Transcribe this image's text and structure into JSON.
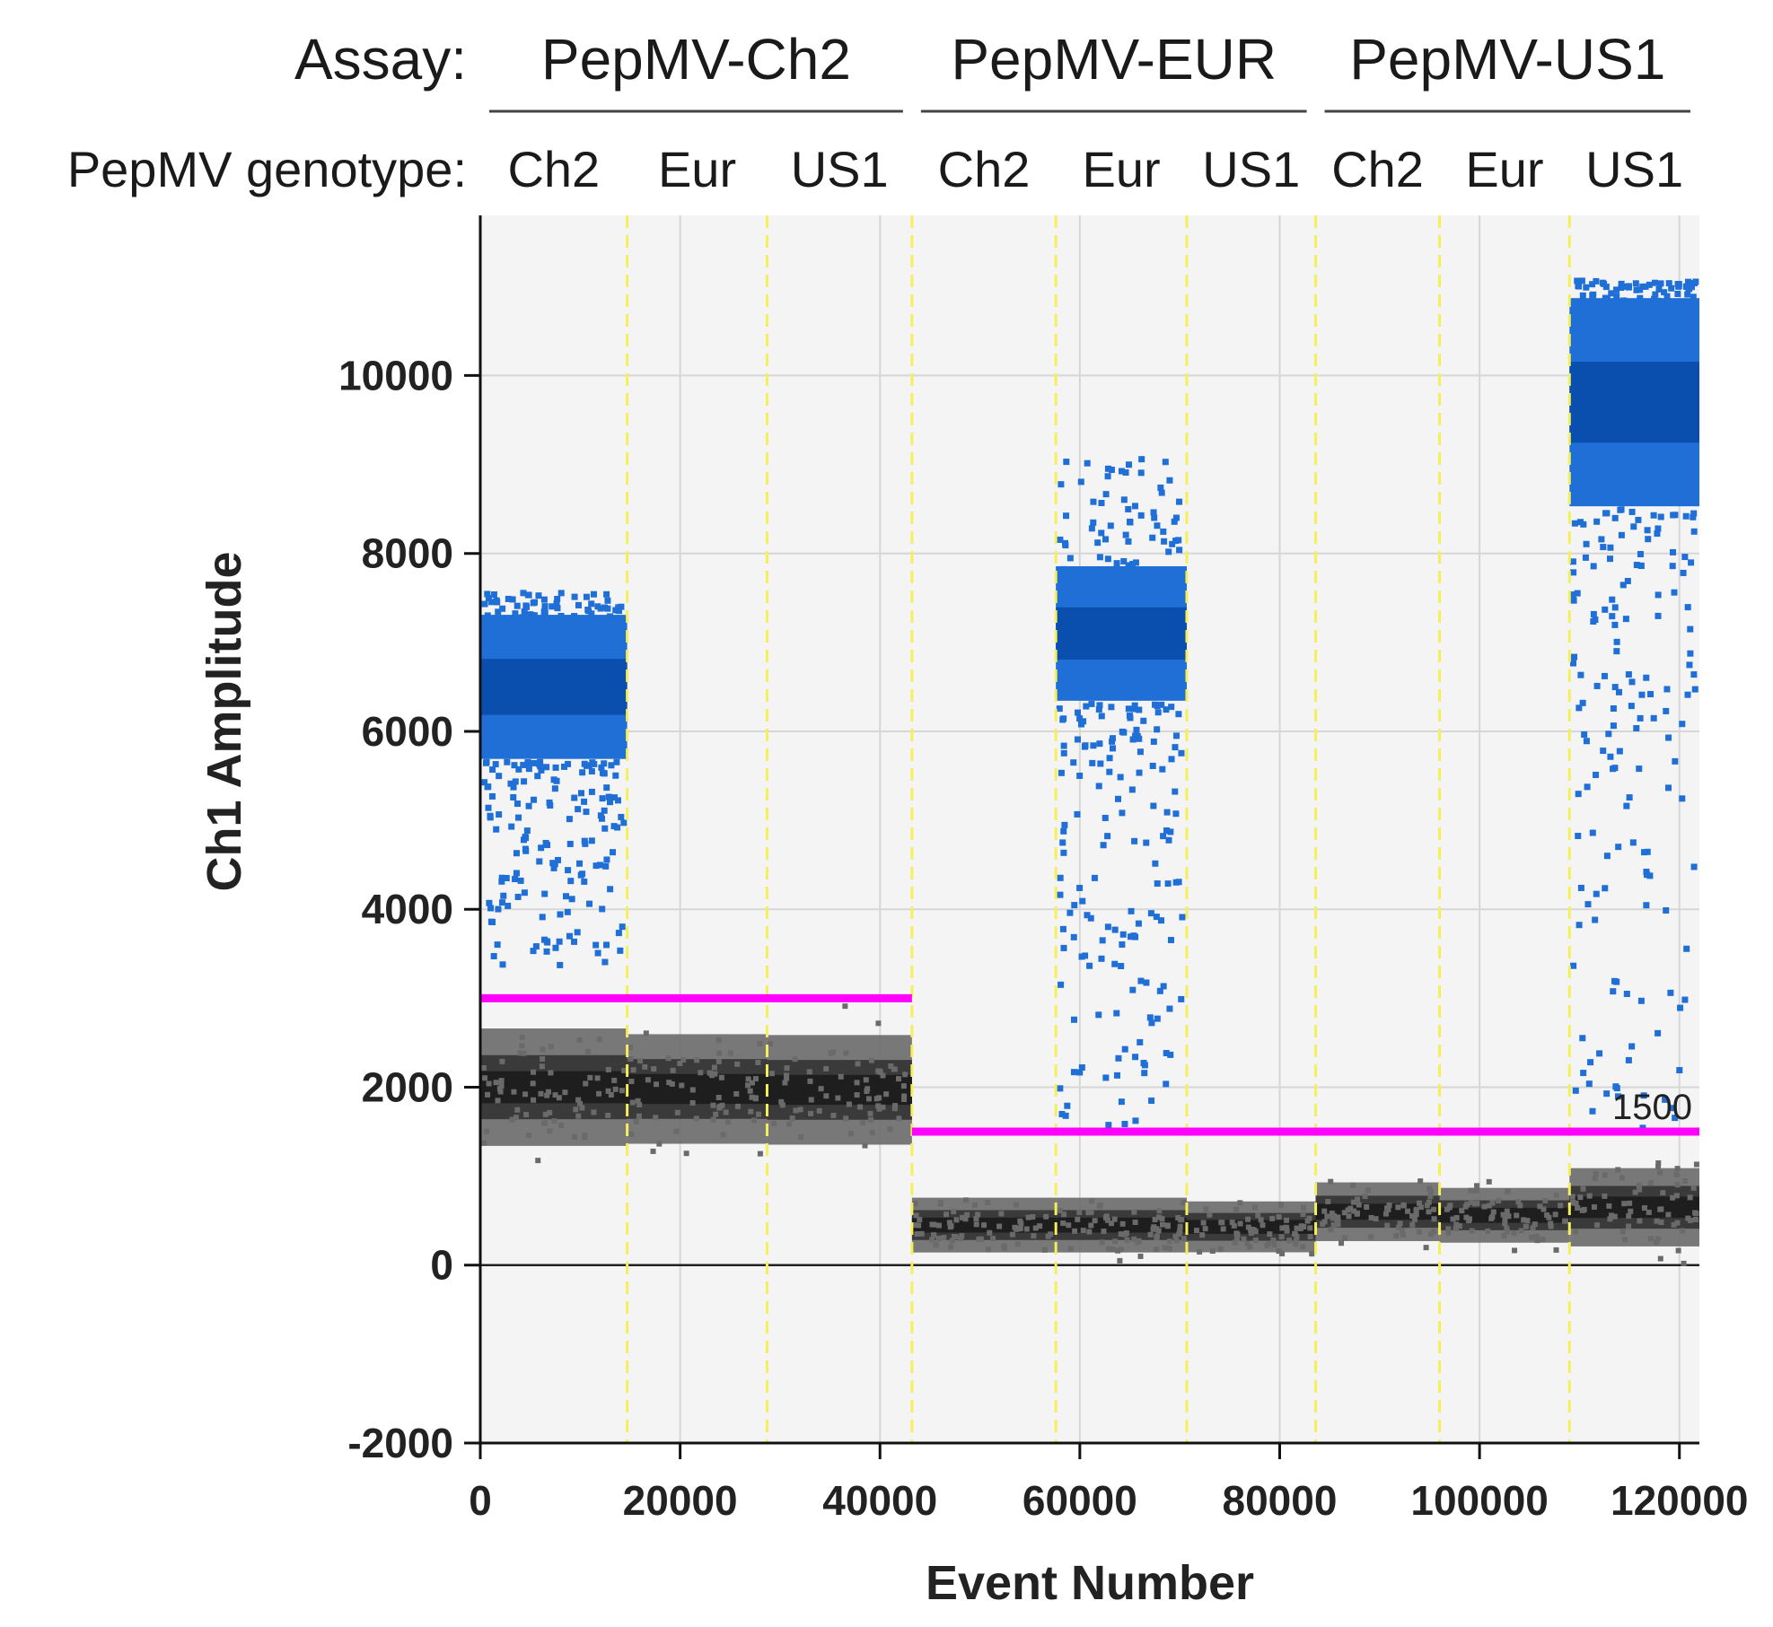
{
  "header": {
    "assay_label": "Assay:",
    "genotype_label": "PepMV genotype:",
    "assays": [
      {
        "name": "PepMV-Ch2",
        "genotypes": [
          "Ch2",
          "Eur",
          "US1"
        ]
      },
      {
        "name": "PepMV-EUR",
        "genotypes": [
          "Ch2",
          "Eur",
          "US1"
        ]
      },
      {
        "name": "PepMV-US1",
        "genotypes": [
          "Ch2",
          "Eur",
          "US1"
        ]
      }
    ]
  },
  "colors": {
    "positive": "#1f6fd6",
    "positive_dense": "#0b4fae",
    "negative": "#6a6a6a",
    "negative_dense": "#1e1e1e",
    "threshold": "#ff00ff",
    "well_divider": "#f3f05a",
    "plot_bg": "#f4f4f4",
    "grid": "#d6d6d6"
  },
  "chart_data": {
    "type": "scatter",
    "xlabel": "Event Number",
    "ylabel": "Ch1 Amplitude",
    "xlim": [
      0,
      122000
    ],
    "ylim": [
      -2000,
      11800
    ],
    "xticks": [
      0,
      20000,
      40000,
      60000,
      80000,
      100000,
      120000
    ],
    "xtick_labels": [
      "0",
      "20000",
      "40000",
      "60000",
      "80000",
      "100000",
      "120000"
    ],
    "yticks": [
      -2000,
      0,
      2000,
      4000,
      6000,
      8000,
      10000
    ],
    "ytick_labels": [
      "-2000",
      "0",
      "2000",
      "4000",
      "6000",
      "8000",
      "10000"
    ],
    "well_boundaries": [
      14700,
      28700,
      43200,
      57600,
      70700,
      83600,
      96000,
      109000
    ],
    "thresholds": [
      {
        "x_start": 0,
        "x_end": 43200,
        "y": 3000,
        "label": ""
      },
      {
        "x_start": 43200,
        "x_end": 122000,
        "y": 1500,
        "label": "1500"
      }
    ],
    "wells": [
      {
        "assay": "PepMV-Ch2",
        "genotype": "Ch2",
        "x_start": 0,
        "x_end": 14700,
        "negative_mean": 2000,
        "negative_spread": 300,
        "positive_mean": 6500,
        "positive_spread": 450,
        "positive_min": 3400,
        "positive_max": 7600
      },
      {
        "assay": "PepMV-Ch2",
        "genotype": "Eur",
        "x_start": 14700,
        "x_end": 28700,
        "negative_mean": 1980,
        "negative_spread": 280,
        "positive_mean": null,
        "positive_spread": null,
        "positive_min": null,
        "positive_max": null
      },
      {
        "assay": "PepMV-Ch2",
        "genotype": "US1",
        "x_start": 28700,
        "x_end": 43200,
        "negative_mean": 1970,
        "negative_spread": 280,
        "positive_mean": null,
        "positive_spread": null,
        "positive_min": null,
        "positive_max": null
      },
      {
        "assay": "PepMV-EUR",
        "genotype": "Ch2",
        "x_start": 43200,
        "x_end": 57600,
        "negative_mean": 450,
        "negative_spread": 140,
        "positive_mean": null,
        "positive_spread": null,
        "positive_min": null,
        "positive_max": null
      },
      {
        "assay": "PepMV-EUR",
        "genotype": "Eur",
        "x_start": 57600,
        "x_end": 70700,
        "negative_mean": 450,
        "negative_spread": 140,
        "positive_mean": 7100,
        "positive_spread": 420,
        "positive_min": 1600,
        "positive_max": 9100
      },
      {
        "assay": "PepMV-EUR",
        "genotype": "US1",
        "x_start": 70700,
        "x_end": 83600,
        "negative_mean": 430,
        "negative_spread": 130,
        "positive_mean": null,
        "positive_spread": null,
        "positive_min": null,
        "positive_max": null
      },
      {
        "assay": "PepMV-US1",
        "genotype": "Ch2",
        "x_start": 83600,
        "x_end": 96000,
        "negative_mean": 600,
        "negative_spread": 150,
        "positive_mean": null,
        "positive_spread": null,
        "positive_min": null,
        "positive_max": null
      },
      {
        "assay": "PepMV-US1",
        "genotype": "Eur",
        "x_start": 96000,
        "x_end": 109000,
        "negative_mean": 560,
        "negative_spread": 140,
        "positive_mean": null,
        "positive_spread": null,
        "positive_min": null,
        "positive_max": null
      },
      {
        "assay": "PepMV-US1",
        "genotype": "US1",
        "x_start": 109000,
        "x_end": 122000,
        "negative_mean": 650,
        "negative_spread": 200,
        "positive_mean": 9700,
        "positive_spread": 650,
        "positive_min": 1500,
        "positive_max": 11100
      }
    ]
  }
}
